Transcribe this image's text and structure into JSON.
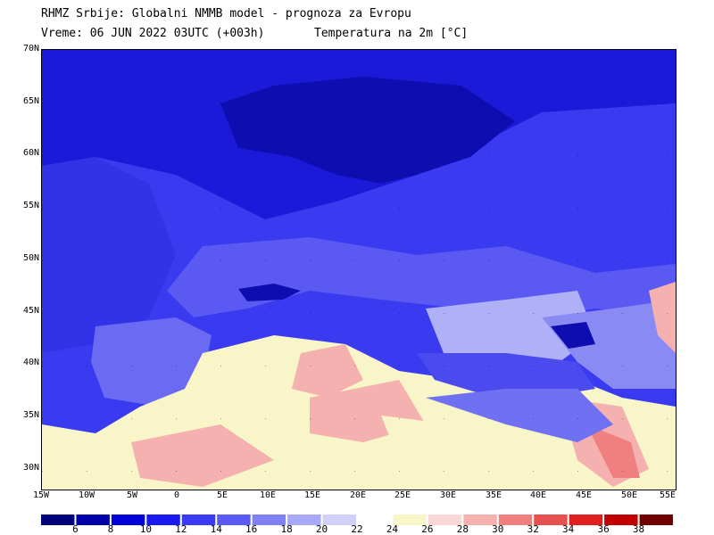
{
  "header": {
    "title": "RHMZ Srbije: Globalni NMMB model - prognoza za Evropu",
    "time": "Vreme: 06 JUN 2022 03UTC (+003h)",
    "variable": "Temperatura na 2m [°C]"
  },
  "lat_labels": [
    "70N",
    "65N",
    "60N",
    "55N",
    "50N",
    "45N",
    "40N",
    "35N",
    "30N"
  ],
  "lon_labels": [
    "15W",
    "10W",
    "5W",
    "0",
    "5E",
    "10E",
    "15E",
    "20E",
    "25E",
    "30E",
    "35E",
    "40E",
    "45E",
    "50E",
    "55E"
  ],
  "colorbar": {
    "labels": [
      "6",
      "8",
      "10",
      "12",
      "14",
      "16",
      "18",
      "20",
      "22",
      "24",
      "26",
      "28",
      "30",
      "32",
      "34",
      "36",
      "38"
    ],
    "colors": [
      "#00007a",
      "#0000a8",
      "#0000d8",
      "#1a1af0",
      "#3a3af5",
      "#5a5af5",
      "#8080f5",
      "#a8a8f8",
      "#d0d0fa",
      "#ffffff",
      "#f8f5c8",
      "#fad8d8",
      "#f5b0b0",
      "#f08080",
      "#e85050",
      "#e02020",
      "#c00000",
      "#700000"
    ]
  },
  "colors": {
    "ocean_north": "#1414d0",
    "land_europe": "#4a4aee",
    "warm_land": "#f8f5c8",
    "hot_spot": "#f08080"
  }
}
